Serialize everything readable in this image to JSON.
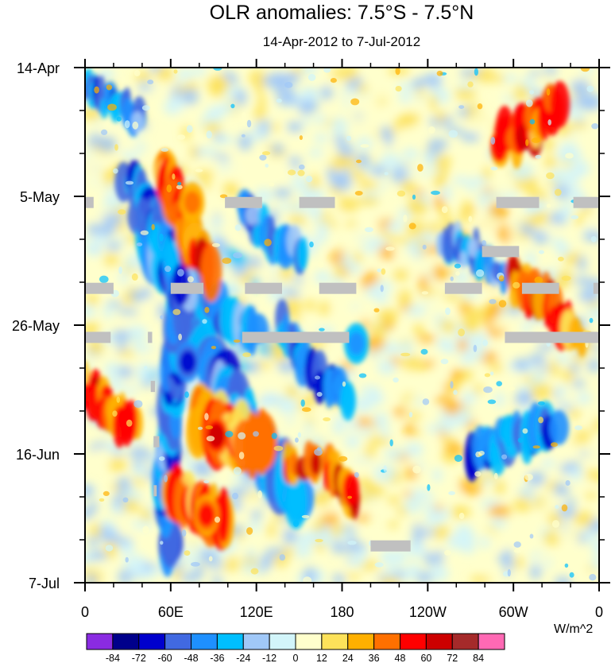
{
  "chart_data": {
    "type": "heatmap",
    "title": "OLR anomalies: 7.5°S - 7.5°N",
    "subtitle": "14-Apr-2012 to 7-Jul-2012",
    "x_ticks": [
      "0",
      "60E",
      "120E",
      "180",
      "120W",
      "60W",
      "0"
    ],
    "y_ticks": [
      "14-Apr",
      "5-May",
      "26-May",
      "16-Jun",
      "7-Jul"
    ],
    "xlim_deg_east": [
      0,
      360
    ],
    "ylim_days": [
      0,
      84
    ],
    "colorbar": {
      "levels": [
        "-84",
        "-72",
        "-60",
        "-48",
        "-36",
        "-24",
        "-12",
        "0",
        "12",
        "24",
        "36",
        "48",
        "60",
        "72",
        "84"
      ],
      "colors": [
        "#8a2be2",
        "#00008b",
        "#0000cd",
        "#4169e1",
        "#1e90ff",
        "#00bfff",
        "#a0c8f8",
        "#d2f5fa",
        "#ffffcc",
        "#fde25a",
        "#ffb000",
        "#ff7000",
        "#ff0000",
        "#cc0000",
        "#a52a2a",
        "#ff69b4"
      ],
      "units": "W/m^2"
    },
    "field_colors": {
      "neutral": "#ffffcc",
      "light_pos": "#fde25a",
      "missing": "#c0c0c0"
    },
    "missing_segments": [
      [
        0,
        6,
        22
      ],
      [
        98,
        124,
        22
      ],
      [
        150,
        175,
        22
      ],
      [
        288,
        318,
        22
      ],
      [
        342,
        360,
        22
      ],
      [
        278,
        304,
        30
      ],
      [
        0,
        20,
        36
      ],
      [
        60,
        83,
        36
      ],
      [
        112,
        138,
        36
      ],
      [
        164,
        190,
        36
      ],
      [
        252,
        278,
        36
      ],
      [
        306,
        332,
        36
      ],
      [
        356,
        360,
        36
      ],
      [
        0,
        18,
        44
      ],
      [
        44,
        47,
        44
      ],
      [
        110,
        185,
        44
      ],
      [
        294,
        360,
        44
      ],
      [
        46,
        49,
        52
      ],
      [
        48,
        52,
        61
      ],
      [
        48,
        50,
        69
      ],
      [
        200,
        228,
        78
      ]
    ],
    "convective_bands": [
      {
        "sign": "neg",
        "pts": [
          [
            40,
            24
          ],
          [
            60,
            34
          ],
          [
            80,
            44
          ],
          [
            100,
            54
          ],
          [
            125,
            63
          ],
          [
            150,
            70
          ]
        ],
        "w": 9
      },
      {
        "sign": "neg",
        "pts": [
          [
            30,
            18
          ],
          [
            50,
            26
          ],
          [
            70,
            34
          ],
          [
            95,
            40
          ],
          [
            120,
            44
          ]
        ],
        "w": 6
      },
      {
        "sign": "neg",
        "pts": [
          [
            60,
            80
          ],
          [
            55,
            68
          ],
          [
            60,
            56
          ],
          [
            62,
            44
          ],
          [
            70,
            36
          ]
        ],
        "w": 7
      },
      {
        "sign": "neg",
        "pts": [
          [
            110,
            22
          ],
          [
            130,
            28
          ],
          [
            150,
            30
          ]
        ],
        "w": 5
      },
      {
        "sign": "neg",
        "pts": [
          [
            140,
            42
          ],
          [
            160,
            50
          ],
          [
            185,
            54
          ]
        ],
        "w": 5
      },
      {
        "sign": "neg",
        "pts": [
          [
            0,
            3
          ],
          [
            20,
            6
          ],
          [
            40,
            8
          ]
        ],
        "w": 4
      },
      {
        "sign": "neg",
        "pts": [
          [
            270,
            64
          ],
          [
            300,
            60
          ],
          [
            330,
            58
          ]
        ],
        "w": 6
      },
      {
        "sign": "neg",
        "pts": [
          [
            250,
            28
          ],
          [
            270,
            30
          ],
          [
            290,
            34
          ]
        ],
        "w": 4
      },
      {
        "sign": "pos",
        "pts": [
          [
            55,
            17
          ],
          [
            70,
            26
          ],
          [
            85,
            32
          ]
        ],
        "w": 7
      },
      {
        "sign": "pos",
        "pts": [
          [
            80,
            58
          ],
          [
            100,
            60
          ],
          [
            130,
            62
          ]
        ],
        "w": 8
      },
      {
        "sign": "pos",
        "pts": [
          [
            60,
            70
          ],
          [
            80,
            72
          ],
          [
            100,
            74
          ]
        ],
        "w": 7
      },
      {
        "sign": "pos",
        "pts": [
          [
            140,
            64
          ],
          [
            175,
            66
          ],
          [
            190,
            70
          ]
        ],
        "w": 5
      },
      {
        "sign": "pos",
        "pts": [
          [
            290,
            12
          ],
          [
            310,
            10
          ],
          [
            330,
            6
          ]
        ],
        "w": 6
      },
      {
        "sign": "pos",
        "pts": [
          [
            300,
            34
          ],
          [
            320,
            38
          ],
          [
            345,
            44
          ]
        ],
        "w": 5
      },
      {
        "sign": "pos",
        "pts": [
          [
            0,
            52
          ],
          [
            15,
            56
          ],
          [
            35,
            58
          ]
        ],
        "w": 5
      }
    ],
    "max_anomaly_blobs": [
      {
        "lon": 92,
        "day": 60,
        "value": 72
      },
      {
        "lon": 85,
        "day": 73,
        "value": 60
      },
      {
        "lon": 75,
        "day": 22,
        "value": 48
      },
      {
        "lon": 190,
        "day": 45,
        "value": -48
      },
      {
        "lon": 72,
        "day": 48,
        "value": -72
      }
    ]
  }
}
